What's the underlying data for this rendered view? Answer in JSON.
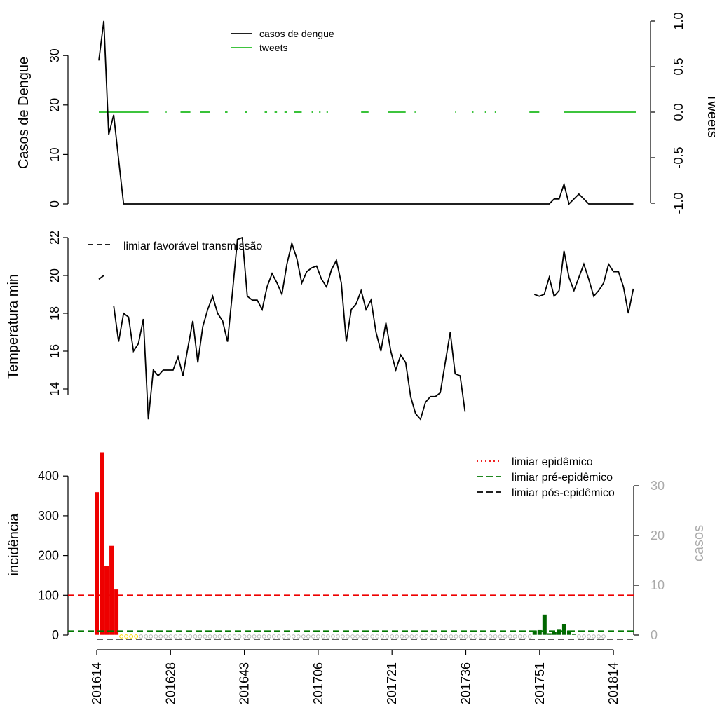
{
  "chart_data": [
    {
      "panel": "top",
      "type": "line",
      "ylabel_left": "Casos de Dengue",
      "ylabel_right": "Tweets",
      "yticks_left": [
        "0",
        "10",
        "20",
        "30"
      ],
      "yticks_right": [
        "-1.0",
        "-0.5",
        "0.0",
        "0.5",
        "1.0"
      ],
      "ylim_left": [
        0,
        37
      ],
      "ylim_right": [
        -1,
        1
      ],
      "legend": [
        "casos de dengue",
        "tweets"
      ],
      "legend_position": "top-center",
      "colors": {
        "casos": "#000000",
        "tweets": "#22bb22"
      },
      "casos_values": [
        29,
        37,
        14,
        18,
        9,
        0,
        0,
        0,
        0,
        0,
        0,
        0,
        0,
        0,
        0,
        0,
        0,
        0,
        0,
        0,
        0,
        0,
        0,
        0,
        0,
        0,
        0,
        0,
        0,
        0,
        0,
        0,
        0,
        0,
        0,
        0,
        0,
        0,
        0,
        0,
        0,
        0,
        0,
        0,
        0,
        0,
        0,
        0,
        0,
        0,
        0,
        0,
        0,
        0,
        0,
        0,
        0,
        0,
        0,
        0,
        0,
        0,
        0,
        0,
        0,
        0,
        0,
        0,
        0,
        0,
        0,
        0,
        0,
        0,
        0,
        0,
        0,
        0,
        0,
        0,
        0,
        0,
        0,
        0,
        0,
        0,
        0,
        0,
        0,
        0,
        0,
        0,
        1,
        1,
        4,
        0,
        1,
        2,
        1,
        0,
        0,
        0,
        0,
        0,
        0,
        0,
        0,
        0,
        0
      ],
      "tweets_segments": [
        [
          0,
          10
        ],
        [
          13.5,
          13.7
        ],
        [
          16.5,
          18.5
        ],
        [
          20.5,
          22.5
        ],
        [
          25.5,
          26
        ],
        [
          29.5,
          30
        ],
        [
          33.5,
          34
        ],
        [
          35.5,
          36
        ],
        [
          37.5,
          38
        ],
        [
          39.5,
          41
        ],
        [
          43,
          43.3
        ],
        [
          44.5,
          44.8
        ],
        [
          46,
          46.3
        ],
        [
          53,
          54.5
        ],
        [
          58.5,
          62
        ],
        [
          63.8,
          64
        ],
        [
          72,
          72.2
        ],
        [
          75.5,
          75.7
        ],
        [
          78,
          78.2
        ],
        [
          80,
          80.2
        ],
        [
          87,
          89
        ],
        [
          94,
          108.5
        ]
      ]
    },
    {
      "panel": "middle",
      "type": "line",
      "ylabel": "Temperatura min",
      "yticks": [
        "14",
        "16",
        "18",
        "20",
        "22"
      ],
      "ylim": [
        12.3,
        22
      ],
      "legend": [
        "limiar favorável transmissão"
      ],
      "legend_position": "top-left",
      "segments": [
        {
          "start": 0,
          "values": [
            19.8,
            20
          ]
        },
        {
          "start": 3,
          "values": [
            18.4,
            16.5,
            18,
            17.8,
            16,
            16.4,
            17.7,
            12.4,
            15,
            14.7,
            15,
            15,
            15,
            15.7,
            14.7,
            16.2,
            17.6,
            15.4,
            17.3,
            18.2,
            18.9,
            18,
            17.6,
            16.5,
            19.1,
            21.9,
            22,
            18.9,
            18.7,
            18.7,
            18.2,
            19.4,
            20.1,
            19.6,
            19,
            20.6,
            21.7,
            20.9,
            19.6,
            20.2,
            20.4,
            20.5,
            19.8,
            19.4,
            20.3,
            20.8,
            19.6,
            16.5,
            18.2,
            18.5,
            19.2,
            18.2,
            18.7,
            17,
            16,
            17.5,
            16,
            15,
            15.8,
            15.4,
            13.6,
            12.7,
            12.4,
            13.3,
            13.6,
            13.6,
            13.8,
            15.4,
            17,
            14.8,
            14.7,
            12.8
          ]
        },
        {
          "start": 88,
          "values": [
            19,
            18.9,
            19,
            19.9,
            18.9,
            19.2,
            21.3,
            19.9,
            19.2,
            19.9,
            20.6,
            19.8,
            18.9,
            19.2,
            19.6,
            20.6,
            20.2,
            20.2,
            19.4,
            18,
            19.3
          ]
        }
      ]
    },
    {
      "panel": "bottom",
      "type": "bar",
      "ylabel_left": "incidência",
      "ylabel_right": "casos",
      "yticks_left": [
        "0",
        "100",
        "200",
        "300",
        "400"
      ],
      "yticks_right": [
        "0",
        "10",
        "20",
        "30"
      ],
      "ylim_left": [
        0,
        470
      ],
      "ylim_right": [
        0,
        30
      ],
      "legend": [
        "limiar epidêmico",
        "limiar pré-epidêmico",
        "limiar pós-epidêmico"
      ],
      "legend_position": "top-right",
      "thresholds": {
        "epidemico": 100,
        "pre_epidemico": 10,
        "pos_epidemico": 0
      },
      "colors": {
        "epidemic": "#ee0000",
        "low": "#ffdd00",
        "moderate": "#006600",
        "epi_line": "#ee0000",
        "pre_line": "#007700",
        "pos_line": "#000000",
        "right_axis": "#aaaaaa"
      },
      "x_tick_labels": [
        "201614",
        "201628",
        "201643",
        "201706",
        "201721",
        "201736",
        "201751",
        "201814"
      ],
      "incidencia_values": [
        360,
        460,
        175,
        225,
        115,
        0,
        0,
        0,
        0,
        0,
        0,
        0,
        0,
        0,
        0,
        0,
        0,
        0,
        0,
        0,
        0,
        0,
        0,
        0,
        0,
        0,
        0,
        0,
        0,
        0,
        0,
        0,
        0,
        0,
        0,
        0,
        0,
        0,
        0,
        0,
        0,
        0,
        0,
        0,
        0,
        0,
        0,
        0,
        0,
        0,
        0,
        0,
        0,
        0,
        0,
        0,
        0,
        0,
        0,
        0,
        0,
        0,
        0,
        0,
        0,
        0,
        0,
        0,
        0,
        0,
        0,
        0,
        0,
        0,
        0,
        0,
        0,
        0,
        0,
        0,
        0,
        0,
        0,
        0,
        0,
        0,
        0,
        0,
        0,
        12,
        13,
        52,
        5,
        8,
        14,
        27,
        12,
        3,
        0,
        0,
        0,
        0,
        0,
        0
      ],
      "alert_levels": [
        3,
        3,
        3,
        3,
        3,
        1,
        1,
        1,
        1,
        0,
        0,
        0,
        0,
        0,
        0,
        0,
        0,
        0,
        0,
        0,
        0,
        0,
        0,
        0,
        0,
        0,
        0,
        0,
        0,
        0,
        0,
        0,
        0,
        0,
        0,
        0,
        0,
        0,
        0,
        0,
        0,
        0,
        0,
        0,
        0,
        0,
        0,
        0,
        0,
        0,
        0,
        0,
        0,
        0,
        0,
        0,
        0,
        0,
        0,
        0,
        0,
        0,
        0,
        0,
        0,
        0,
        0,
        0,
        0,
        0,
        0,
        0,
        0,
        0,
        0,
        0,
        0,
        0,
        0,
        0,
        0,
        0,
        0,
        0,
        0,
        0,
        0,
        0,
        0,
        2,
        2,
        2,
        2,
        2,
        2,
        2,
        2,
        2,
        0,
        0,
        0,
        0,
        0,
        0
      ]
    }
  ]
}
